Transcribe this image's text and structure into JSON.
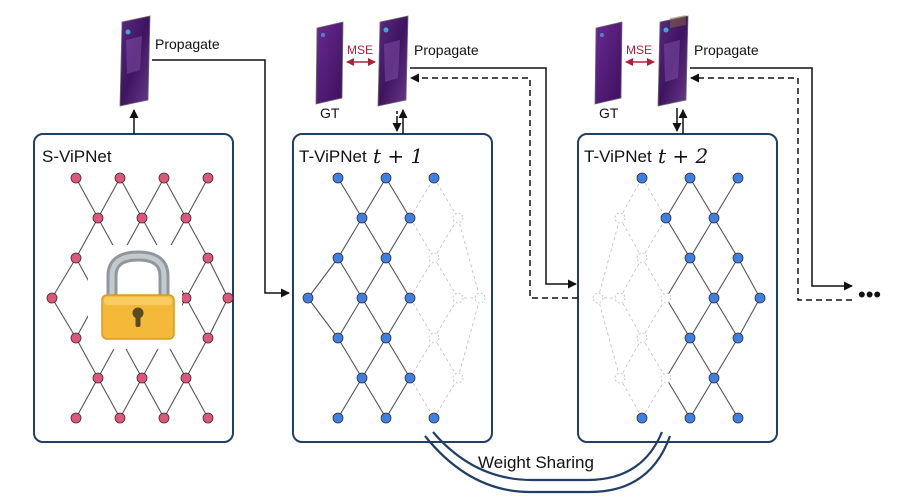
{
  "panels": [
    {
      "id": "s",
      "title": "S-ViPNet",
      "title_suffix": "",
      "frozen": true,
      "node_color": "#e0567a"
    },
    {
      "id": "t1",
      "title": "T-ViPNet",
      "title_suffix": "t + 1",
      "frozen": false,
      "node_color": "#3f7fe0"
    },
    {
      "id": "t2",
      "title": "T-ViPNet",
      "title_suffix": "t + 2",
      "frozen": false,
      "node_color": "#3f7fe0"
    }
  ],
  "labels": {
    "propagate": "Propagate",
    "gt": "GT",
    "mse": "MSE",
    "weight_sharing": "Weight Sharing",
    "continuation": "•••"
  },
  "colors": {
    "panel_border": "#1f3f66",
    "mse": "#b0203a",
    "lock_body": "#f5b93a",
    "lock_shackle": "#9ea4aa",
    "image_fill": "#4b1a6e",
    "edge": "#555555",
    "inactive": "#bbbbbb"
  },
  "icons": [
    "lock-icon",
    "image-thumbnail-icon",
    "ellipsis-icon"
  ]
}
